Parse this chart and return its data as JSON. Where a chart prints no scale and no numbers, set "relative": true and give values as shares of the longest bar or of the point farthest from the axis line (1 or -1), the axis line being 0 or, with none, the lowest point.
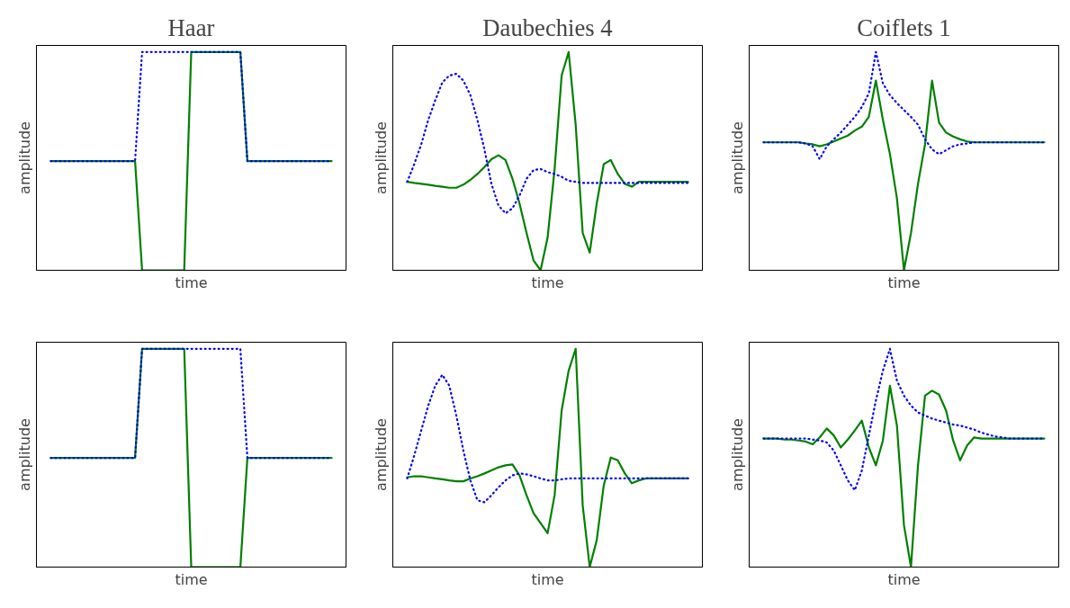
{
  "chart_data": [
    {
      "type": "line",
      "title": "Haar",
      "xlabel": "time",
      "ylabel": "amplitude",
      "relative": true,
      "categories": [
        null,
        null,
        null,
        null,
        null,
        null,
        null,
        null,
        null,
        null,
        null,
        null,
        null,
        null,
        null,
        null,
        null,
        null,
        null,
        null,
        null,
        null,
        null,
        null,
        null,
        null,
        null,
        null,
        null,
        null,
        null,
        null,
        null,
        null,
        null,
        null,
        null,
        null,
        null,
        null,
        null
      ],
      "series": [
        {
          "color": "#008000",
          "line_style": "solid",
          "values": [
            0.5,
            0.5,
            0.5,
            0.5,
            0.5,
            0.5,
            0.5,
            0.5,
            0.5,
            0.5,
            0.5,
            0.5,
            0.5,
            0,
            0,
            0,
            0,
            0,
            0,
            0,
            1,
            1,
            1,
            1,
            1,
            1,
            1,
            1,
            0.5,
            0.5,
            0.5,
            0.5,
            0.5,
            0.5,
            0.5,
            0.5,
            0.5,
            0.5,
            0.5,
            0.5,
            0.5
          ]
        },
        {
          "color": "#0000ff",
          "line_style": "dotted",
          "values": [
            0.5,
            0.5,
            0.5,
            0.5,
            0.5,
            0.5,
            0.5,
            0.5,
            0.5,
            0.5,
            0.5,
            0.5,
            0.5,
            1,
            1,
            1,
            1,
            1,
            1,
            1,
            1,
            1,
            1,
            1,
            1,
            1,
            1,
            1,
            0.5,
            0.5,
            0.5,
            0.5,
            0.5,
            0.5,
            0.5,
            0.5,
            0.5,
            0.5,
            0.5,
            0.5,
            0.5
          ]
        }
      ]
    },
    {
      "type": "line",
      "title": "Daubechies 4",
      "xlabel": "time",
      "ylabel": "amplitude",
      "relative": true,
      "categories": [
        null,
        null,
        null,
        null,
        null,
        null,
        null,
        null,
        null,
        null,
        null,
        null,
        null,
        null,
        null,
        null,
        null,
        null,
        null,
        null,
        null,
        null,
        null,
        null,
        null,
        null,
        null,
        null,
        null,
        null,
        null,
        null,
        null,
        null,
        null,
        null,
        null,
        null,
        null,
        null,
        null
      ],
      "series": [
        {
          "color": "#008000",
          "line_style": "solid",
          "values": [
            0.405,
            0.4,
            0.396,
            0.392,
            0.387,
            0.383,
            0.378,
            0.378,
            0.392,
            0.414,
            0.441,
            0.473,
            0.509,
            0.527,
            0.505,
            0.419,
            0.306,
            0.171,
            0.045,
            0,
            0.149,
            0.464,
            0.892,
            1,
            0.667,
            0.171,
            0.081,
            0.306,
            0.486,
            0.505,
            0.441,
            0.396,
            0.383,
            0.405,
            0.405,
            0.405,
            0.405,
            0.405,
            0.405,
            0.405,
            0.405
          ]
        },
        {
          "color": "#0000ff",
          "line_style": "dotted",
          "values": [
            0.405,
            0.486,
            0.577,
            0.689,
            0.779,
            0.86,
            0.892,
            0.9,
            0.869,
            0.802,
            0.689,
            0.554,
            0.396,
            0.297,
            0.261,
            0.284,
            0.342,
            0.419,
            0.459,
            0.464,
            0.45,
            0.441,
            0.428,
            0.41,
            0.405,
            0.4,
            0.4,
            0.4,
            0.4,
            0.4,
            0.4,
            0.4,
            0.4,
            0.4,
            0.4,
            0.4,
            0.4,
            0.4,
            0.4,
            0.4,
            0.4
          ]
        }
      ]
    },
    {
      "type": "line",
      "title": "Coiflets 1",
      "xlabel": "time",
      "ylabel": "amplitude",
      "relative": true,
      "categories": [
        null,
        null,
        null,
        null,
        null,
        null,
        null,
        null,
        null,
        null,
        null,
        null,
        null,
        null,
        null,
        null,
        null,
        null,
        null,
        null,
        null,
        null,
        null,
        null,
        null,
        null,
        null,
        null,
        null,
        null,
        null,
        null,
        null,
        null,
        null,
        null,
        null,
        null,
        null,
        null,
        null
      ],
      "series": [
        {
          "color": "#008000",
          "line_style": "solid",
          "values": [
            0.586,
            0.586,
            0.586,
            0.586,
            0.586,
            0.586,
            0.581,
            0.577,
            0.568,
            0.577,
            0.59,
            0.604,
            0.617,
            0.64,
            0.658,
            0.703,
            0.869,
            0.689,
            0.532,
            0.329,
            0,
            0.171,
            0.396,
            0.577,
            0.869,
            0.676,
            0.631,
            0.613,
            0.6,
            0.59,
            0.586,
            0.586,
            0.586,
            0.586,
            0.586,
            0.586,
            0.586,
            0.586,
            0.586,
            0.586,
            0.586
          ]
        },
        {
          "color": "#0000ff",
          "line_style": "dotted",
          "values": [
            0.586,
            0.586,
            0.586,
            0.586,
            0.586,
            0.586,
            0.581,
            0.568,
            0.509,
            0.568,
            0.6,
            0.631,
            0.667,
            0.703,
            0.748,
            0.811,
            1,
            0.856,
            0.802,
            0.766,
            0.734,
            0.703,
            0.667,
            0.6,
            0.554,
            0.532,
            0.55,
            0.568,
            0.577,
            0.581,
            0.586,
            0.586,
            0.586,
            0.586,
            0.586,
            0.586,
            0.586,
            0.586,
            0.586,
            0.586,
            0.586
          ]
        }
      ]
    },
    {
      "type": "line",
      "xlabel": "time",
      "ylabel": "amplitude",
      "relative": true,
      "categories": [
        null,
        null,
        null,
        null,
        null,
        null,
        null,
        null,
        null,
        null,
        null,
        null,
        null,
        null,
        null,
        null,
        null,
        null,
        null,
        null,
        null,
        null,
        null,
        null,
        null,
        null,
        null,
        null,
        null,
        null,
        null,
        null,
        null,
        null,
        null,
        null,
        null,
        null,
        null,
        null,
        null
      ],
      "series": [
        {
          "color": "#008000",
          "line_style": "solid",
          "values": [
            0.5,
            0.5,
            0.5,
            0.5,
            0.5,
            0.5,
            0.5,
            0.5,
            0.5,
            0.5,
            0.5,
            0.5,
            0.5,
            1,
            1,
            1,
            1,
            1,
            1,
            1,
            0,
            0,
            0,
            0,
            0,
            0,
            0,
            0,
            0.5,
            0.5,
            0.5,
            0.5,
            0.5,
            0.5,
            0.5,
            0.5,
            0.5,
            0.5,
            0.5,
            0.5,
            0.5
          ]
        },
        {
          "color": "#0000ff",
          "line_style": "dotted",
          "values": [
            0.5,
            0.5,
            0.5,
            0.5,
            0.5,
            0.5,
            0.5,
            0.5,
            0.5,
            0.5,
            0.5,
            0.5,
            0.5,
            1,
            1,
            1,
            1,
            1,
            1,
            1,
            1,
            1,
            1,
            1,
            1,
            1,
            1,
            1,
            0.5,
            0.5,
            0.5,
            0.5,
            0.5,
            0.5,
            0.5,
            0.5,
            0.5,
            0.5,
            0.5,
            0.5,
            0.5
          ]
        }
      ]
    },
    {
      "type": "line",
      "xlabel": "time",
      "ylabel": "amplitude",
      "relative": true,
      "categories": [
        null,
        null,
        null,
        null,
        null,
        null,
        null,
        null,
        null,
        null,
        null,
        null,
        null,
        null,
        null,
        null,
        null,
        null,
        null,
        null,
        null,
        null,
        null,
        null,
        null,
        null,
        null,
        null,
        null,
        null,
        null,
        null,
        null,
        null,
        null,
        null,
        null,
        null,
        null,
        null,
        null
      ],
      "series": [
        {
          "color": "#008000",
          "line_style": "solid",
          "values": [
            0.411,
            0.416,
            0.416,
            0.411,
            0.406,
            0.402,
            0.397,
            0.393,
            0.393,
            0.406,
            0.416,
            0.429,
            0.443,
            0.457,
            0.466,
            0.47,
            0.42,
            0.329,
            0.247,
            0.201,
            0.155,
            0.329,
            0.717,
            0.9,
            1,
            0.283,
            0,
            0.123,
            0.374,
            0.502,
            0.489,
            0.429,
            0.384,
            0.397,
            0.406,
            0.406,
            0.406,
            0.406,
            0.406,
            0.406,
            0.406
          ]
        },
        {
          "color": "#0000ff",
          "line_style": "dotted",
          "values": [
            0.406,
            0.511,
            0.626,
            0.74,
            0.831,
            0.881,
            0.831,
            0.694,
            0.534,
            0.397,
            0.306,
            0.297,
            0.329,
            0.365,
            0.397,
            0.42,
            0.429,
            0.425,
            0.416,
            0.406,
            0.397,
            0.397,
            0.402,
            0.406,
            0.406,
            0.406,
            0.406,
            0.406,
            0.406,
            0.406,
            0.406,
            0.406,
            0.406,
            0.406,
            0.406,
            0.406,
            0.406,
            0.406,
            0.406,
            0.406,
            0.406
          ]
        }
      ]
    },
    {
      "type": "line",
      "xlabel": "time",
      "ylabel": "amplitude",
      "relative": true,
      "categories": [
        null,
        null,
        null,
        null,
        null,
        null,
        null,
        null,
        null,
        null,
        null,
        null,
        null,
        null,
        null,
        null,
        null,
        null,
        null,
        null,
        null,
        null,
        null,
        null,
        null,
        null,
        null,
        null,
        null,
        null,
        null,
        null,
        null,
        null,
        null,
        null,
        null,
        null,
        null,
        null,
        null
      ],
      "series": [
        {
          "color": "#008000",
          "line_style": "solid",
          "values": [
            0.589,
            0.589,
            0.589,
            0.584,
            0.584,
            0.58,
            0.575,
            0.562,
            0.594,
            0.635,
            0.603,
            0.548,
            0.584,
            0.626,
            0.671,
            0.548,
            0.466,
            0.58,
            0.831,
            0.648,
            0.192,
            0,
            0.466,
            0.785,
            0.808,
            0.79,
            0.717,
            0.58,
            0.489,
            0.557,
            0.594,
            0.589,
            0.589,
            0.589,
            0.589,
            0.589,
            0.589,
            0.589,
            0.589,
            0.589,
            0.589
          ]
        },
        {
          "color": "#0000ff",
          "line_style": "dotted",
          "values": [
            0.589,
            0.589,
            0.589,
            0.589,
            0.589,
            0.589,
            0.589,
            0.584,
            0.58,
            0.571,
            0.534,
            0.466,
            0.397,
            0.352,
            0.443,
            0.603,
            0.763,
            0.9,
            1,
            0.854,
            0.785,
            0.74,
            0.708,
            0.694,
            0.68,
            0.671,
            0.662,
            0.653,
            0.648,
            0.639,
            0.63,
            0.616,
            0.607,
            0.598,
            0.594,
            0.589,
            0.589,
            0.589,
            0.589,
            0.589,
            0.589
          ]
        }
      ]
    }
  ]
}
